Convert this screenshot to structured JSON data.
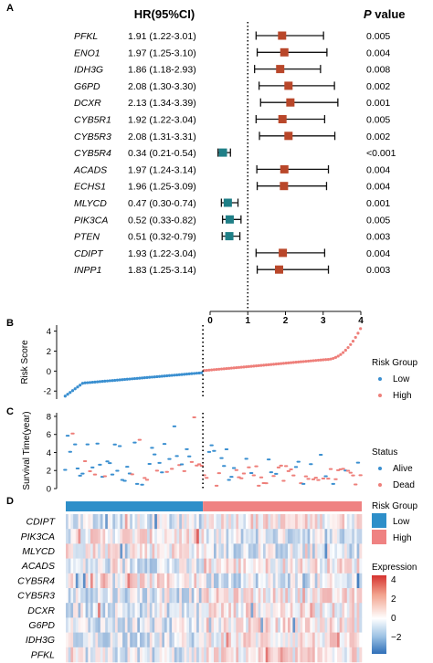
{
  "panels": {
    "a": "A",
    "b": "B",
    "c": "C",
    "d": "D"
  },
  "forest": {
    "hr_header": "HR(95%CI)",
    "p_header_italic": "P",
    "p_header_rest": " value",
    "x_ticks": [
      "0",
      "1",
      "2",
      "3",
      "4"
    ],
    "reference_line_at": 1,
    "xlim": [
      0,
      4
    ],
    "colors": {
      "risk": "#b9472a",
      "protective": "#1f7f87",
      "whisker": "#111111"
    },
    "rows": [
      {
        "gene": "PFKL",
        "hr_text": "1.91 (1.22-3.01)",
        "hr": 1.91,
        "lo": 1.22,
        "hi": 3.01,
        "p": "0.005"
      },
      {
        "gene": "ENO1",
        "hr_text": "1.97 (1.25-3.10)",
        "hr": 1.97,
        "lo": 1.25,
        "hi": 3.1,
        "p": "0.004"
      },
      {
        "gene": "IDH3G",
        "hr_text": "1.86 (1.18-2.93)",
        "hr": 1.86,
        "lo": 1.18,
        "hi": 2.93,
        "p": "0.008"
      },
      {
        "gene": "G6PD",
        "hr_text": "2.08 (1.30-3.30)",
        "hr": 2.08,
        "lo": 1.3,
        "hi": 3.3,
        "p": "0.002"
      },
      {
        "gene": "DCXR",
        "hr_text": "2.13 (1.34-3.39)",
        "hr": 2.13,
        "lo": 1.34,
        "hi": 3.39,
        "p": "0.001"
      },
      {
        "gene": "CYB5R1",
        "hr_text": "1.92 (1.22-3.04)",
        "hr": 1.92,
        "lo": 1.22,
        "hi": 3.04,
        "p": "0.005"
      },
      {
        "gene": "CYB5R3",
        "hr_text": "2.08 (1.31-3.31)",
        "hr": 2.08,
        "lo": 1.31,
        "hi": 3.31,
        "p": "0.002"
      },
      {
        "gene": "CYB5R4",
        "hr_text": "0.34 (0.21-0.54)",
        "hr": 0.34,
        "lo": 0.21,
        "hi": 0.54,
        "p": "<0.001"
      },
      {
        "gene": "ACADS",
        "hr_text": "1.97 (1.24-3.14)",
        "hr": 1.97,
        "lo": 1.24,
        "hi": 3.14,
        "p": "0.004"
      },
      {
        "gene": "ECHS1",
        "hr_text": "1.96 (1.25-3.09)",
        "hr": 1.96,
        "lo": 1.25,
        "hi": 3.09,
        "p": "0.004"
      },
      {
        "gene": "MLYCD",
        "hr_text": "0.47 (0.30-0.74)",
        "hr": 0.47,
        "lo": 0.3,
        "hi": 0.74,
        "p": "0.001"
      },
      {
        "gene": "PIK3CA",
        "hr_text": "0.52 (0.33-0.82)",
        "hr": 0.52,
        "lo": 0.33,
        "hi": 0.82,
        "p": "0.005"
      },
      {
        "gene": "PTEN",
        "hr_text": "0.51 (0.32-0.79)",
        "hr": 0.51,
        "lo": 0.32,
        "hi": 0.79,
        "p": "0.003"
      },
      {
        "gene": "CDIPT",
        "hr_text": "1.93 (1.22-3.04)",
        "hr": 1.93,
        "lo": 1.22,
        "hi": 3.04,
        "p": "0.004"
      },
      {
        "gene": "INPP1",
        "hr_text": "1.83 (1.25-3.14)",
        "hr": 1.83,
        "lo": 1.25,
        "hi": 3.14,
        "p": "0.003"
      }
    ]
  },
  "risk_score": {
    "ylabel": "Risk Score",
    "y_ticks": [
      "-2",
      "0",
      "2",
      "4"
    ],
    "ylim": [
      -2.8,
      4.6
    ],
    "legend_title": "Risk Group",
    "legend_items": [
      {
        "label": "Low",
        "color": "#3a8fd0"
      },
      {
        "label": "High",
        "color": "#ee7f7a"
      }
    ],
    "cutoff_fraction": 0.47
  },
  "survival": {
    "ylabel": "Survival Time(year)",
    "y_ticks": [
      "0",
      "2",
      "4",
      "6",
      "8"
    ],
    "ylim": [
      0,
      8.4
    ],
    "legend_title": "Status",
    "legend_items": [
      {
        "label": "Alive",
        "color": "#3a8fd0"
      },
      {
        "label": "Dead",
        "color": "#ee7f7a"
      }
    ]
  },
  "heatmap": {
    "genes": [
      "CDIPT",
      "PIK3CA",
      "MLYCD",
      "ACADS",
      "CYB5R4",
      "CYB5R3",
      "DCXR",
      "G6PD",
      "IDH3G",
      "PFKL"
    ],
    "legend1_title": "Risk Group",
    "legend1_items": [
      {
        "label": "Low",
        "color": "#2e8fc9"
      },
      {
        "label": "High",
        "color": "#ef8282"
      }
    ],
    "legend2_title": "Expression",
    "legend2_ticks": [
      "4",
      "2",
      "0",
      "−2"
    ],
    "scale": {
      "min": -3.2,
      "max": 4.4,
      "low_color": "#2f6fb8",
      "mid_color": "#ffffff",
      "high_color": "#d5322f"
    }
  },
  "chart_data": [
    {
      "type": "scatter",
      "title": "",
      "subtitle": "Forest plot",
      "xlabel": "",
      "x_ticks": [
        0,
        1,
        2,
        3,
        4
      ],
      "xlim": [
        0,
        4
      ],
      "categories": [
        "PFKL",
        "ENO1",
        "IDH3G",
        "G6PD",
        "DCXR",
        "CYB5R1",
        "CYB5R3",
        "CYB5R4",
        "ACADS",
        "ECHS1",
        "MLYCD",
        "PIK3CA",
        "PTEN",
        "CDIPT",
        "INPP1"
      ],
      "hr": [
        1.91,
        1.97,
        1.86,
        2.08,
        2.13,
        1.92,
        2.08,
        0.34,
        1.97,
        1.96,
        0.47,
        0.52,
        0.51,
        1.93,
        1.83
      ],
      "ci_low": [
        1.22,
        1.25,
        1.18,
        1.3,
        1.34,
        1.22,
        1.31,
        0.21,
        1.24,
        1.25,
        0.3,
        0.33,
        0.32,
        1.22,
        1.25
      ],
      "ci_high": [
        3.01,
        3.1,
        2.93,
        3.3,
        3.39,
        3.04,
        3.31,
        0.54,
        3.14,
        3.09,
        0.74,
        0.82,
        0.79,
        3.04,
        3.14
      ],
      "p_value": [
        "0.005",
        "0.004",
        "0.008",
        "0.002",
        "0.001",
        "0.005",
        "0.002",
        "<0.001",
        "0.004",
        "0.004",
        "0.001",
        "0.005",
        "0.003",
        "0.004",
        "0.003"
      ]
    },
    {
      "type": "scatter",
      "ylabel": "Risk Score",
      "ylim": [
        -2.8,
        4.6
      ],
      "legend": [
        "Low",
        "High"
      ],
      "description_values": "sorted risk scores rising from about -2.5 to about 4.2; low group left of dashed cutoff"
    },
    {
      "type": "scatter",
      "ylabel": "Survival Time(year)",
      "ylim": [
        0,
        8.4
      ],
      "legend": [
        "Alive",
        "Dead"
      ]
    },
    {
      "type": "heatmap",
      "rows": [
        "CDIPT",
        "PIK3CA",
        "MLYCD",
        "ACADS",
        "CYB5R4",
        "CYB5R3",
        "DCXR",
        "G6PD",
        "IDH3G",
        "PFKL"
      ],
      "colorbar_ticks": [
        4,
        2,
        0,
        -2
      ],
      "annotation": "Risk Group (Low | High)"
    }
  ]
}
